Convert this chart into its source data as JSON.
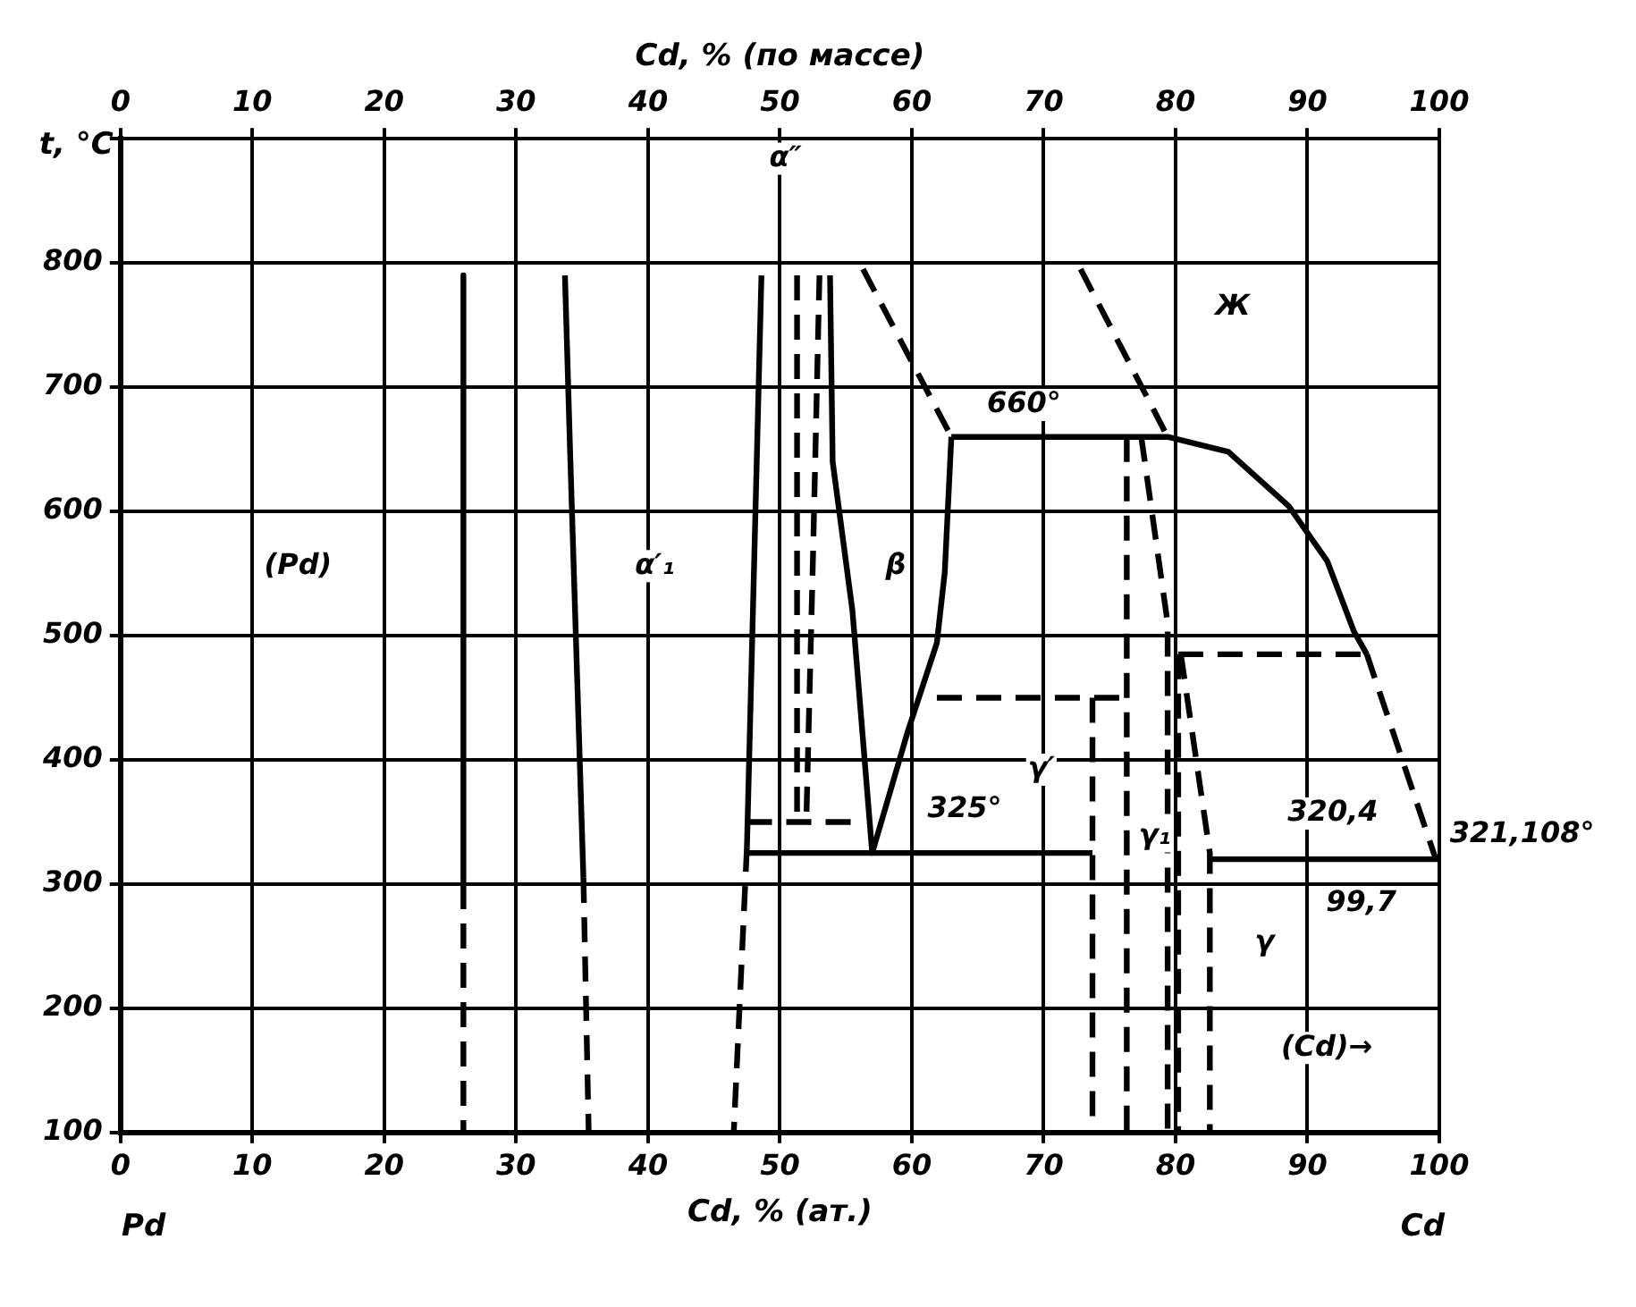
{
  "chart_data": {
    "type": "line",
    "xlabel": "Cd, % (ат.)",
    "x2label": "Cd, % (по массе)",
    "ylabel": "t, °C",
    "xlim": [
      0,
      100
    ],
    "xticks": [
      0,
      10,
      20,
      30,
      40,
      50,
      60,
      70,
      80,
      90,
      100
    ],
    "x2lim": [
      0,
      100
    ],
    "x2ticks": [
      0,
      10,
      20,
      30,
      40,
      50,
      60,
      70,
      80,
      90,
      100
    ],
    "ylim": [
      100,
      900
    ],
    "yticks": [
      100,
      200,
      300,
      400,
      500,
      600,
      700,
      800,
      {
        "value": 900,
        "label": null
      }
    ],
    "grid": true,
    "legend": false,
    "marker": "none",
    "series": [
      {
        "color": "#000000",
        "line_style": "solid",
        "x": [
          26,
          26
        ],
        "values": [
          790,
          300
        ]
      },
      {
        "color": "#000000",
        "line_style": "dashed",
        "x": [
          26,
          26
        ],
        "values": [
          300,
          100
        ]
      },
      {
        "color": "#000000",
        "line_style": "solid",
        "x": [
          33.7,
          34.1,
          35.1
        ],
        "values": [
          790,
          645,
          305
        ]
      },
      {
        "color": "#000000",
        "line_style": "dashed",
        "x": [
          35.1,
          35.5
        ],
        "values": [
          305,
          100
        ]
      },
      {
        "color": "#000000",
        "line_style": "solid",
        "x": [
          48.6,
          47.5
        ],
        "values": [
          790,
          330
        ]
      },
      {
        "color": "#000000",
        "line_style": "dashed",
        "x": [
          47.5,
          46.5
        ],
        "values": [
          330,
          100
        ]
      },
      {
        "color": "#000000",
        "line_style": "dashed",
        "x": [
          51.3,
          51.3
        ],
        "values": [
          790,
          350
        ]
      },
      {
        "color": "#000000",
        "line_style": "dashed",
        "x": [
          47.5,
          56.3
        ],
        "values": [
          350,
          350
        ]
      },
      {
        "color": "#000000",
        "line_style": "dashed",
        "x": [
          53,
          52.5,
          52
        ],
        "values": [
          790,
          560,
          350
        ]
      },
      {
        "color": "#000000",
        "line_style": "solid",
        "x": [
          53.8,
          54,
          55.5,
          57,
          59.7,
          61.9,
          62.5,
          63
        ],
        "values": [
          790,
          640,
          520,
          325,
          423,
          494,
          551,
          660
        ]
      },
      {
        "color": "#000000",
        "line_style": "dashed",
        "x": [
          56.3,
          63
        ],
        "values": [
          795,
          660
        ]
      },
      {
        "color": "#000000",
        "line_style": "solid",
        "x": [
          63,
          79.4,
          84,
          88.6,
          91.5,
          93.5,
          94.5
        ],
        "values": [
          660,
          660,
          648,
          604,
          560,
          504,
          485
        ]
      },
      {
        "color": "#000000",
        "line_style": "dashed",
        "x": [
          94.5,
          99.7
        ],
        "values": [
          485,
          321
        ]
      },
      {
        "color": "#000000",
        "line_style": "dashed",
        "x": [
          72.8,
          79.4
        ],
        "values": [
          795,
          660
        ]
      },
      {
        "color": "#000000",
        "line_style": "solid",
        "x": [
          47.5,
          73.7
        ],
        "values": [
          325,
          325
        ]
      },
      {
        "color": "#000000",
        "line_style": "solid",
        "x": [
          82.6,
          100
        ],
        "values": [
          320,
          320
        ]
      },
      {
        "color": "#000000",
        "line_style": "dashed",
        "x": [
          61.9,
          76.3
        ],
        "values": [
          450,
          450
        ]
      },
      {
        "color": "#000000",
        "line_style": "dashed",
        "x": [
          73.7,
          73.7
        ],
        "values": [
          450,
          100
        ]
      },
      {
        "color": "#000000",
        "line_style": "dashed",
        "x": [
          76.3,
          76.3
        ],
        "values": [
          660,
          100
        ]
      },
      {
        "color": "#000000",
        "line_style": "dashed",
        "x": [
          77.4,
          79.4,
          79.4
        ],
        "values": [
          660,
          510,
          100
        ]
      },
      {
        "color": "#000000",
        "line_style": "dashed",
        "x": [
          80.2,
          80.2
        ],
        "values": [
          485,
          100
        ]
      },
      {
        "color": "#000000",
        "line_style": "dashed",
        "x": [
          80.2,
          94.5
        ],
        "values": [
          485,
          485
        ]
      },
      {
        "color": "#000000",
        "line_style": "dashed",
        "x": [
          80.4,
          82.6,
          82.6
        ],
        "values": [
          485,
          325,
          100
        ]
      }
    ],
    "annotations": [
      "(Pd)",
      "α′₁",
      "β",
      "Ж",
      "α″",
      "660°",
      "325°",
      "γ′",
      "γ₁",
      "γ",
      "320,4",
      "321,108°",
      "99,7",
      "(Cd)→",
      "Pd",
      "Cd"
    ]
  }
}
